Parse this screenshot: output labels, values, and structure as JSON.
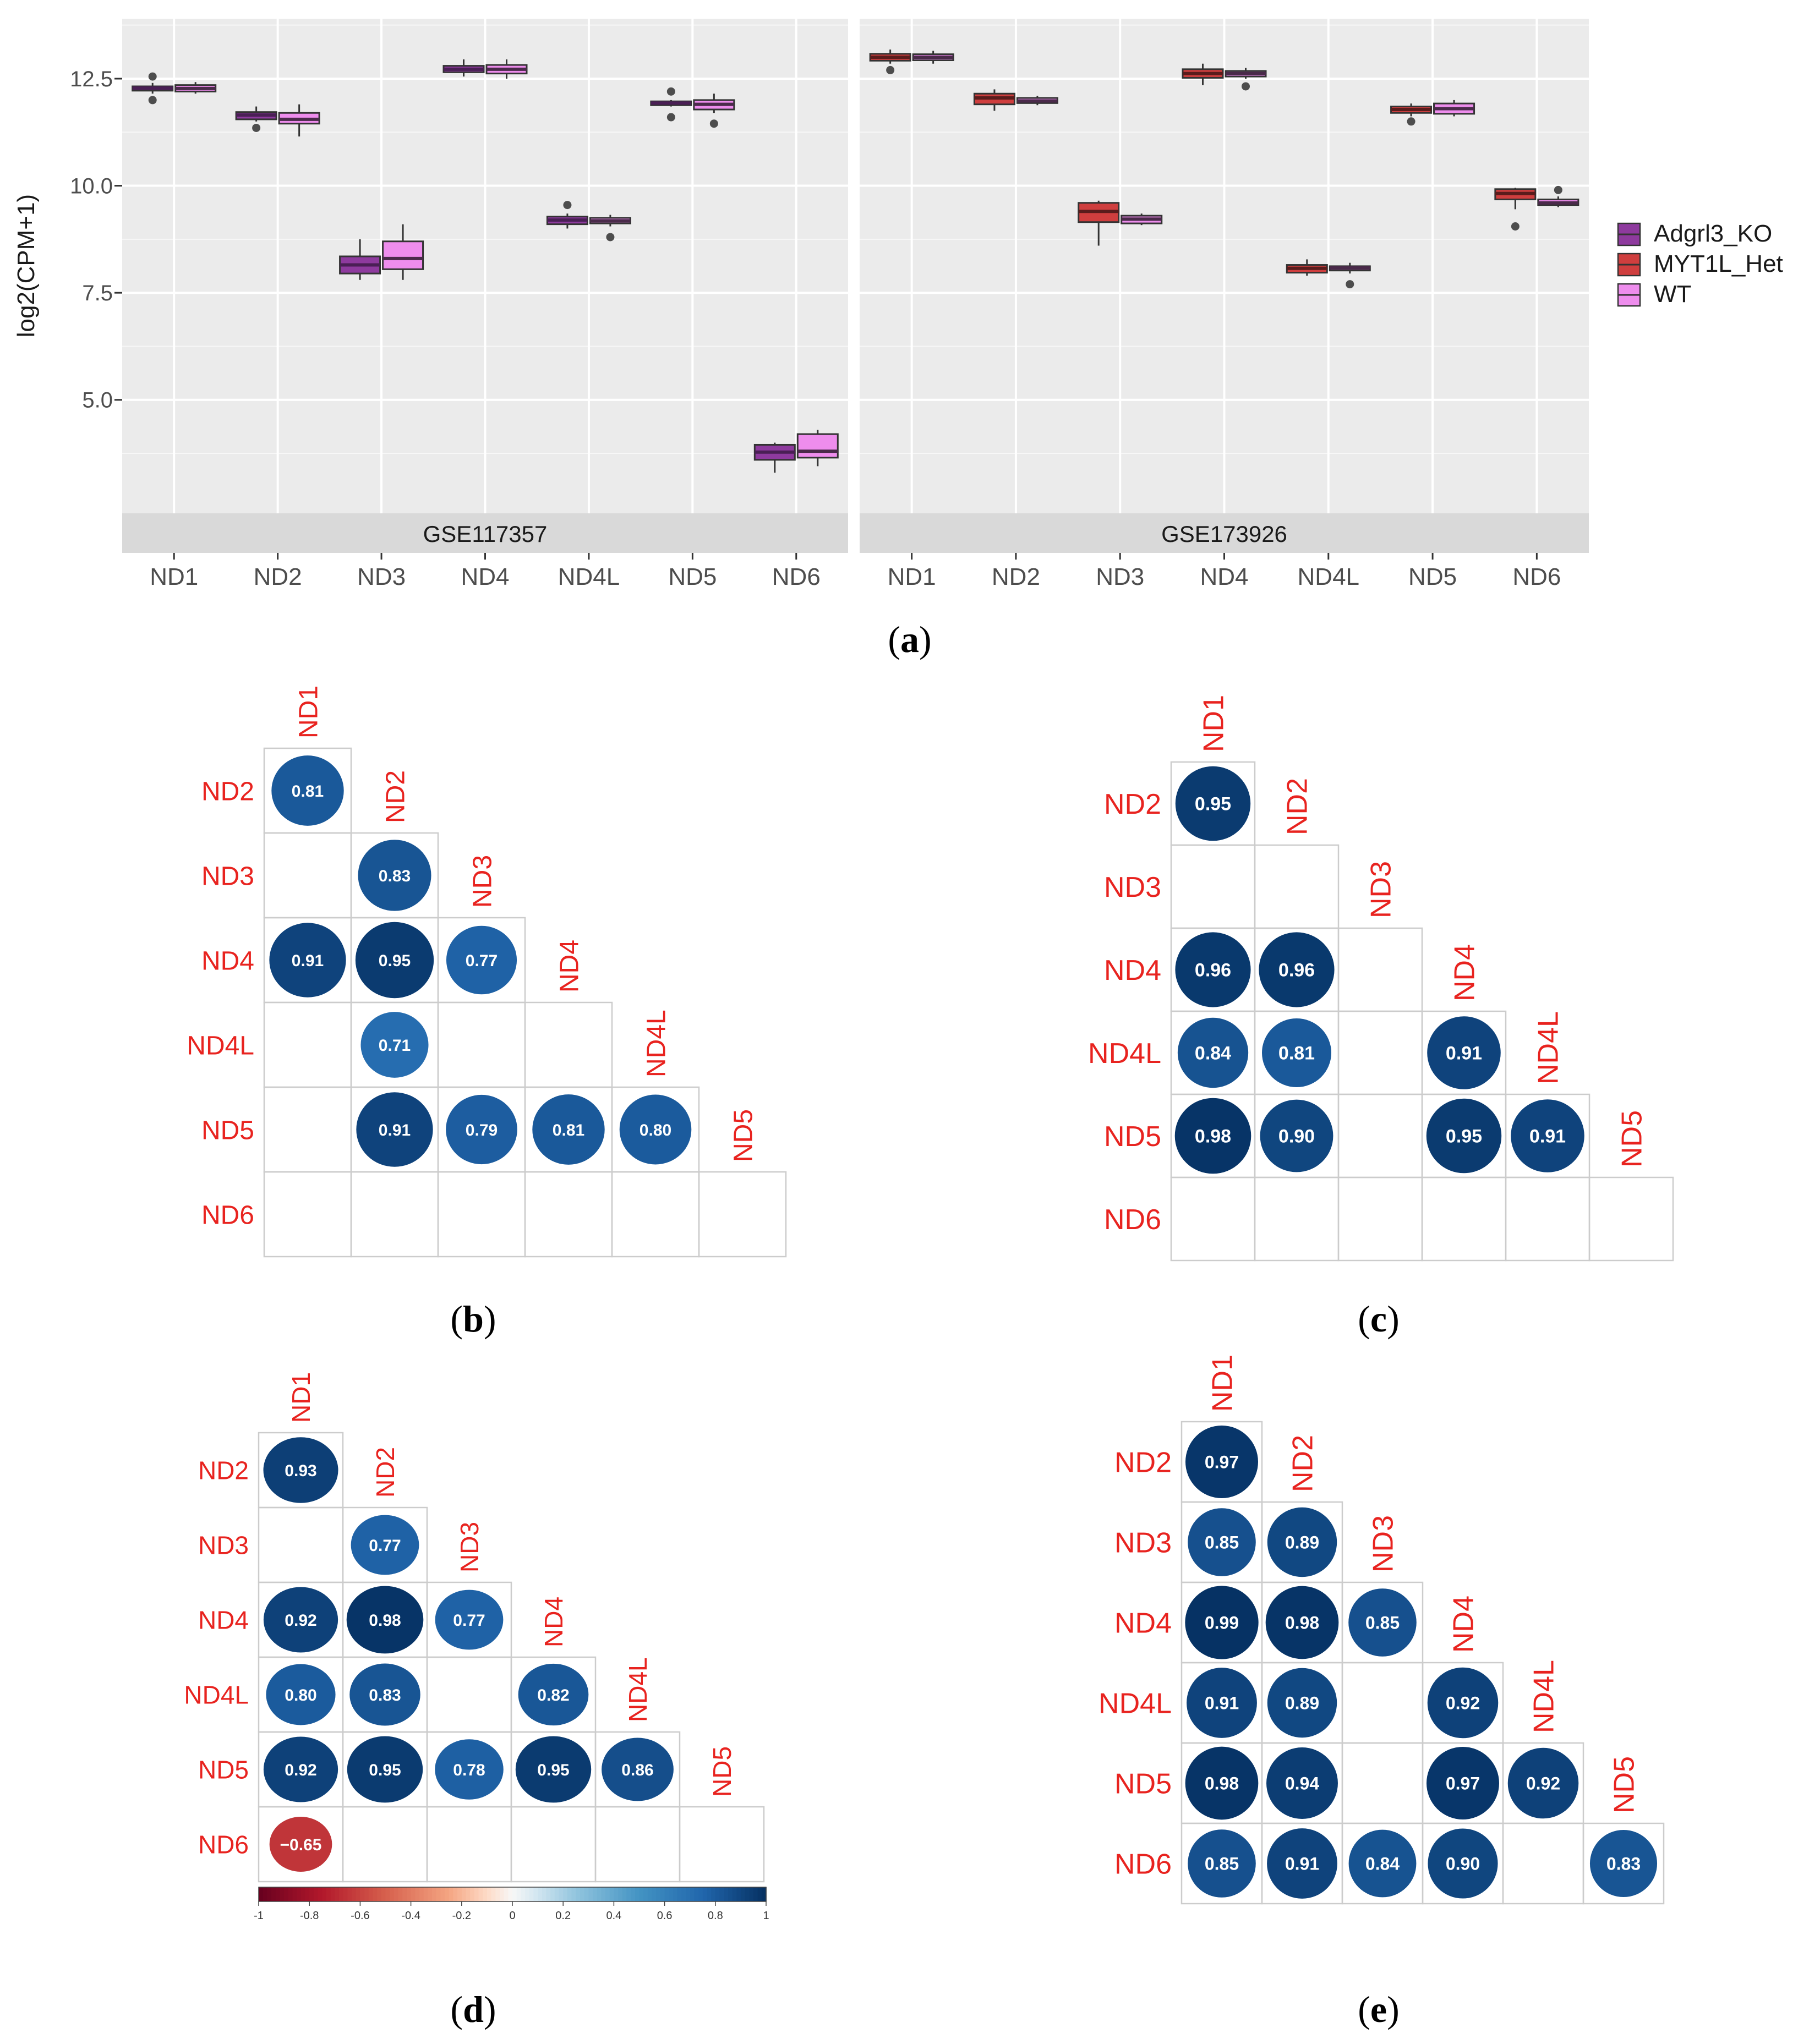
{
  "figure": {
    "captions": [
      "(a)",
      "(b)",
      "(c)",
      "(d)",
      "(e)"
    ]
  },
  "chart_data": [
    {
      "type": "boxplot",
      "panel": "a",
      "ylabel": "log2(CPM+1)",
      "yticks": [
        5.0,
        7.5,
        10.0,
        12.5
      ],
      "ytick_labels": [
        "5.0",
        "7.5",
        "10.0",
        "12.5"
      ],
      "ylim": [
        2.35,
        13.9
      ],
      "categories": [
        "ND1",
        "ND2",
        "ND3",
        "ND4",
        "ND4L",
        "ND5",
        "ND6"
      ],
      "legend": [
        {
          "name": "Adgrl3_KO",
          "color": "#8e3a9e"
        },
        {
          "name": "MYT1L_Het",
          "color": "#cf3e3e"
        },
        {
          "name": "WT",
          "color": "#ee8ded"
        }
      ],
      "facets": [
        {
          "label": "GSE117357",
          "groups": [
            "Adgrl3_KO",
            "WT"
          ],
          "boxes": [
            {
              "gene": "ND1",
              "group": "Adgrl3_KO",
              "lo": 12.15,
              "q1": 12.22,
              "med": 12.28,
              "q3": 12.32,
              "hi": 12.4,
              "out": [
                12.55,
                12.0
              ]
            },
            {
              "gene": "ND1",
              "group": "WT",
              "lo": 12.15,
              "q1": 12.2,
              "med": 12.27,
              "q3": 12.35,
              "hi": 12.42,
              "out": []
            },
            {
              "gene": "ND2",
              "group": "Adgrl3_KO",
              "lo": 11.5,
              "q1": 11.55,
              "med": 11.65,
              "q3": 11.72,
              "hi": 11.85,
              "out": [
                11.35
              ]
            },
            {
              "gene": "ND2",
              "group": "WT",
              "lo": 11.15,
              "q1": 11.45,
              "med": 11.55,
              "q3": 11.7,
              "hi": 11.9,
              "out": []
            },
            {
              "gene": "ND3",
              "group": "Adgrl3_KO",
              "lo": 7.8,
              "q1": 7.95,
              "med": 8.15,
              "q3": 8.35,
              "hi": 8.75,
              "out": []
            },
            {
              "gene": "ND3",
              "group": "WT",
              "lo": 7.8,
              "q1": 8.05,
              "med": 8.3,
              "q3": 8.7,
              "hi": 9.1,
              "out": []
            },
            {
              "gene": "ND4",
              "group": "Adgrl3_KO",
              "lo": 12.55,
              "q1": 12.65,
              "med": 12.72,
              "q3": 12.8,
              "hi": 12.95,
              "out": []
            },
            {
              "gene": "ND4",
              "group": "WT",
              "lo": 12.5,
              "q1": 12.62,
              "med": 12.72,
              "q3": 12.82,
              "hi": 12.95,
              "out": []
            },
            {
              "gene": "ND4L",
              "group": "Adgrl3_KO",
              "lo": 9.0,
              "q1": 9.1,
              "med": 9.2,
              "q3": 9.28,
              "hi": 9.35,
              "out": [
                9.55
              ]
            },
            {
              "gene": "ND4L",
              "group": "WT",
              "lo": 9.05,
              "q1": 9.12,
              "med": 9.18,
              "q3": 9.25,
              "hi": 9.32,
              "out": [
                8.8
              ]
            },
            {
              "gene": "ND5",
              "group": "Adgrl3_KO",
              "lo": 11.85,
              "q1": 11.88,
              "med": 11.93,
              "q3": 11.97,
              "hi": 12.0,
              "out": [
                12.2,
                11.6
              ]
            },
            {
              "gene": "ND5",
              "group": "WT",
              "lo": 11.7,
              "q1": 11.78,
              "med": 11.9,
              "q3": 12.0,
              "hi": 12.15,
              "out": [
                11.45
              ]
            },
            {
              "gene": "ND6",
              "group": "Adgrl3_KO",
              "lo": 3.3,
              "q1": 3.6,
              "med": 3.78,
              "q3": 3.95,
              "hi": 4.0,
              "out": []
            },
            {
              "gene": "ND6",
              "group": "WT",
              "lo": 3.45,
              "q1": 3.65,
              "med": 3.8,
              "q3": 4.2,
              "hi": 4.3,
              "out": []
            }
          ]
        },
        {
          "label": "GSE173926",
          "groups": [
            "MYT1L_Het",
            "WT"
          ],
          "boxes": [
            {
              "gene": "ND1",
              "group": "MYT1L_Het",
              "lo": 12.85,
              "q1": 12.92,
              "med": 13.0,
              "q3": 13.08,
              "hi": 13.18,
              "out": [
                12.7
              ]
            },
            {
              "gene": "ND1",
              "group": "WT",
              "lo": 12.85,
              "q1": 12.93,
              "med": 13.0,
              "q3": 13.07,
              "hi": 13.15,
              "out": []
            },
            {
              "gene": "ND2",
              "group": "MYT1L_Het",
              "lo": 11.75,
              "q1": 11.9,
              "med": 12.05,
              "q3": 12.15,
              "hi": 12.25,
              "out": []
            },
            {
              "gene": "ND2",
              "group": "WT",
              "lo": 11.88,
              "q1": 11.93,
              "med": 11.98,
              "q3": 12.05,
              "hi": 12.1,
              "out": []
            },
            {
              "gene": "ND3",
              "group": "MYT1L_Het",
              "lo": 8.6,
              "q1": 9.15,
              "med": 9.4,
              "q3": 9.6,
              "hi": 9.65,
              "out": []
            },
            {
              "gene": "ND3",
              "group": "WT",
              "lo": 9.08,
              "q1": 9.12,
              "med": 9.22,
              "q3": 9.3,
              "hi": 9.35,
              "out": []
            },
            {
              "gene": "ND4",
              "group": "MYT1L_Het",
              "lo": 12.35,
              "q1": 12.52,
              "med": 12.62,
              "q3": 12.72,
              "hi": 12.85,
              "out": []
            },
            {
              "gene": "ND4",
              "group": "WT",
              "lo": 12.5,
              "q1": 12.55,
              "med": 12.62,
              "q3": 12.68,
              "hi": 12.75,
              "out": [
                12.32
              ]
            },
            {
              "gene": "ND4L",
              "group": "MYT1L_Het",
              "lo": 7.9,
              "q1": 7.97,
              "med": 8.07,
              "q3": 8.15,
              "hi": 8.28,
              "out": []
            },
            {
              "gene": "ND4L",
              "group": "WT",
              "lo": 7.95,
              "q1": 8.02,
              "med": 8.08,
              "q3": 8.12,
              "hi": 8.2,
              "out": [
                7.7
              ]
            },
            {
              "gene": "ND5",
              "group": "MYT1L_Het",
              "lo": 11.62,
              "q1": 11.7,
              "med": 11.78,
              "q3": 11.85,
              "hi": 11.92,
              "out": [
                11.5
              ]
            },
            {
              "gene": "ND5",
              "group": "WT",
              "lo": 11.62,
              "q1": 11.68,
              "med": 11.8,
              "q3": 11.92,
              "hi": 12.0,
              "out": []
            },
            {
              "gene": "ND6",
              "group": "MYT1L_Het",
              "lo": 9.45,
              "q1": 9.68,
              "med": 9.82,
              "q3": 9.92,
              "hi": 9.95,
              "out": [
                9.05
              ]
            },
            {
              "gene": "ND6",
              "group": "WT",
              "lo": 9.5,
              "q1": 9.55,
              "med": 9.6,
              "q3": 9.68,
              "hi": 9.75,
              "out": [
                9.9
              ]
            }
          ]
        }
      ]
    },
    {
      "type": "heatmap",
      "panel": "b",
      "labels": [
        "ND1",
        "ND2",
        "ND3",
        "ND4",
        "ND4L",
        "ND5",
        "ND6"
      ],
      "cells": [
        {
          "row": 1,
          "col": 0,
          "value": 0.81,
          "label": "0.81"
        },
        {
          "row": 2,
          "col": 1,
          "value": 0.83,
          "label": "0.83"
        },
        {
          "row": 3,
          "col": 0,
          "value": 0.91,
          "label": "0.91"
        },
        {
          "row": 3,
          "col": 1,
          "value": 0.95,
          "label": "0.95"
        },
        {
          "row": 3,
          "col": 2,
          "value": 0.77,
          "label": "0.77"
        },
        {
          "row": 4,
          "col": 1,
          "value": 0.71,
          "label": "0.71"
        },
        {
          "row": 5,
          "col": 1,
          "value": 0.91,
          "label": "0.91"
        },
        {
          "row": 5,
          "col": 2,
          "value": 0.79,
          "label": "0.79"
        },
        {
          "row": 5,
          "col": 3,
          "value": 0.81,
          "label": "0.81"
        },
        {
          "row": 5,
          "col": 4,
          "value": 0.8,
          "label": "0.80"
        }
      ]
    },
    {
      "type": "heatmap",
      "panel": "c",
      "labels": [
        "ND1",
        "ND2",
        "ND3",
        "ND4",
        "ND4L",
        "ND5",
        "ND6"
      ],
      "cells": [
        {
          "row": 1,
          "col": 0,
          "value": 0.95,
          "label": "0.95"
        },
        {
          "row": 3,
          "col": 0,
          "value": 0.96,
          "label": "0.96"
        },
        {
          "row": 3,
          "col": 1,
          "value": 0.96,
          "label": "0.96"
        },
        {
          "row": 4,
          "col": 0,
          "value": 0.84,
          "label": "0.84"
        },
        {
          "row": 4,
          "col": 1,
          "value": 0.81,
          "label": "0.81"
        },
        {
          "row": 4,
          "col": 3,
          "value": 0.91,
          "label": "0.91"
        },
        {
          "row": 5,
          "col": 0,
          "value": 0.98,
          "label": "0.98"
        },
        {
          "row": 5,
          "col": 1,
          "value": 0.9,
          "label": "0.90"
        },
        {
          "row": 5,
          "col": 3,
          "value": 0.95,
          "label": "0.95"
        },
        {
          "row": 5,
          "col": 4,
          "value": 0.91,
          "label": "0.91"
        }
      ]
    },
    {
      "type": "heatmap",
      "panel": "d",
      "labels": [
        "ND1",
        "ND2",
        "ND3",
        "ND4",
        "ND4L",
        "ND5",
        "ND6"
      ],
      "colorbar": {
        "ticks": [
          -1,
          -0.8,
          -0.6,
          -0.4,
          -0.2,
          0,
          0.2,
          0.4,
          0.6,
          0.8,
          1
        ],
        "tick_labels": [
          "-1",
          "-0.8",
          "-0.6",
          "-0.4",
          "-0.2",
          "0",
          "0.2",
          "0.4",
          "0.6",
          "0.8",
          "1"
        ]
      },
      "cells": [
        {
          "row": 1,
          "col": 0,
          "value": 0.93,
          "label": "0.93"
        },
        {
          "row": 2,
          "col": 1,
          "value": 0.77,
          "label": "0.77"
        },
        {
          "row": 3,
          "col": 0,
          "value": 0.92,
          "label": "0.92"
        },
        {
          "row": 3,
          "col": 1,
          "value": 0.98,
          "label": "0.98"
        },
        {
          "row": 3,
          "col": 2,
          "value": 0.77,
          "label": "0.77"
        },
        {
          "row": 4,
          "col": 0,
          "value": 0.8,
          "label": "0.80"
        },
        {
          "row": 4,
          "col": 1,
          "value": 0.83,
          "label": "0.83"
        },
        {
          "row": 4,
          "col": 3,
          "value": 0.82,
          "label": "0.82"
        },
        {
          "row": 5,
          "col": 0,
          "value": 0.92,
          "label": "0.92"
        },
        {
          "row": 5,
          "col": 1,
          "value": 0.95,
          "label": "0.95"
        },
        {
          "row": 5,
          "col": 2,
          "value": 0.78,
          "label": "0.78"
        },
        {
          "row": 5,
          "col": 3,
          "value": 0.95,
          "label": "0.95"
        },
        {
          "row": 5,
          "col": 4,
          "value": 0.86,
          "label": "0.86"
        },
        {
          "row": 6,
          "col": 0,
          "value": -0.65,
          "label": "−0.65"
        }
      ]
    },
    {
      "type": "heatmap",
      "panel": "e",
      "labels": [
        "ND1",
        "ND2",
        "ND3",
        "ND4",
        "ND4L",
        "ND5",
        "ND6"
      ],
      "cells": [
        {
          "row": 1,
          "col": 0,
          "value": 0.97,
          "label": "0.97"
        },
        {
          "row": 2,
          "col": 0,
          "value": 0.85,
          "label": "0.85"
        },
        {
          "row": 2,
          "col": 1,
          "value": 0.89,
          "label": "0.89"
        },
        {
          "row": 3,
          "col": 0,
          "value": 0.99,
          "label": "0.99"
        },
        {
          "row": 3,
          "col": 1,
          "value": 0.98,
          "label": "0.98"
        },
        {
          "row": 3,
          "col": 2,
          "value": 0.85,
          "label": "0.85"
        },
        {
          "row": 4,
          "col": 0,
          "value": 0.91,
          "label": "0.91"
        },
        {
          "row": 4,
          "col": 1,
          "value": 0.89,
          "label": "0.89"
        },
        {
          "row": 4,
          "col": 3,
          "value": 0.92,
          "label": "0.92"
        },
        {
          "row": 5,
          "col": 0,
          "value": 0.98,
          "label": "0.98"
        },
        {
          "row": 5,
          "col": 1,
          "value": 0.94,
          "label": "0.94"
        },
        {
          "row": 5,
          "col": 3,
          "value": 0.97,
          "label": "0.97"
        },
        {
          "row": 5,
          "col": 4,
          "value": 0.92,
          "label": "0.92"
        },
        {
          "row": 6,
          "col": 0,
          "value": 0.85,
          "label": "0.85"
        },
        {
          "row": 6,
          "col": 1,
          "value": 0.91,
          "label": "0.91"
        },
        {
          "row": 6,
          "col": 2,
          "value": 0.84,
          "label": "0.84"
        },
        {
          "row": 6,
          "col": 3,
          "value": 0.9,
          "label": "0.90"
        },
        {
          "row": 6,
          "col": 5,
          "value": 0.83,
          "label": "0.83"
        }
      ]
    }
  ]
}
